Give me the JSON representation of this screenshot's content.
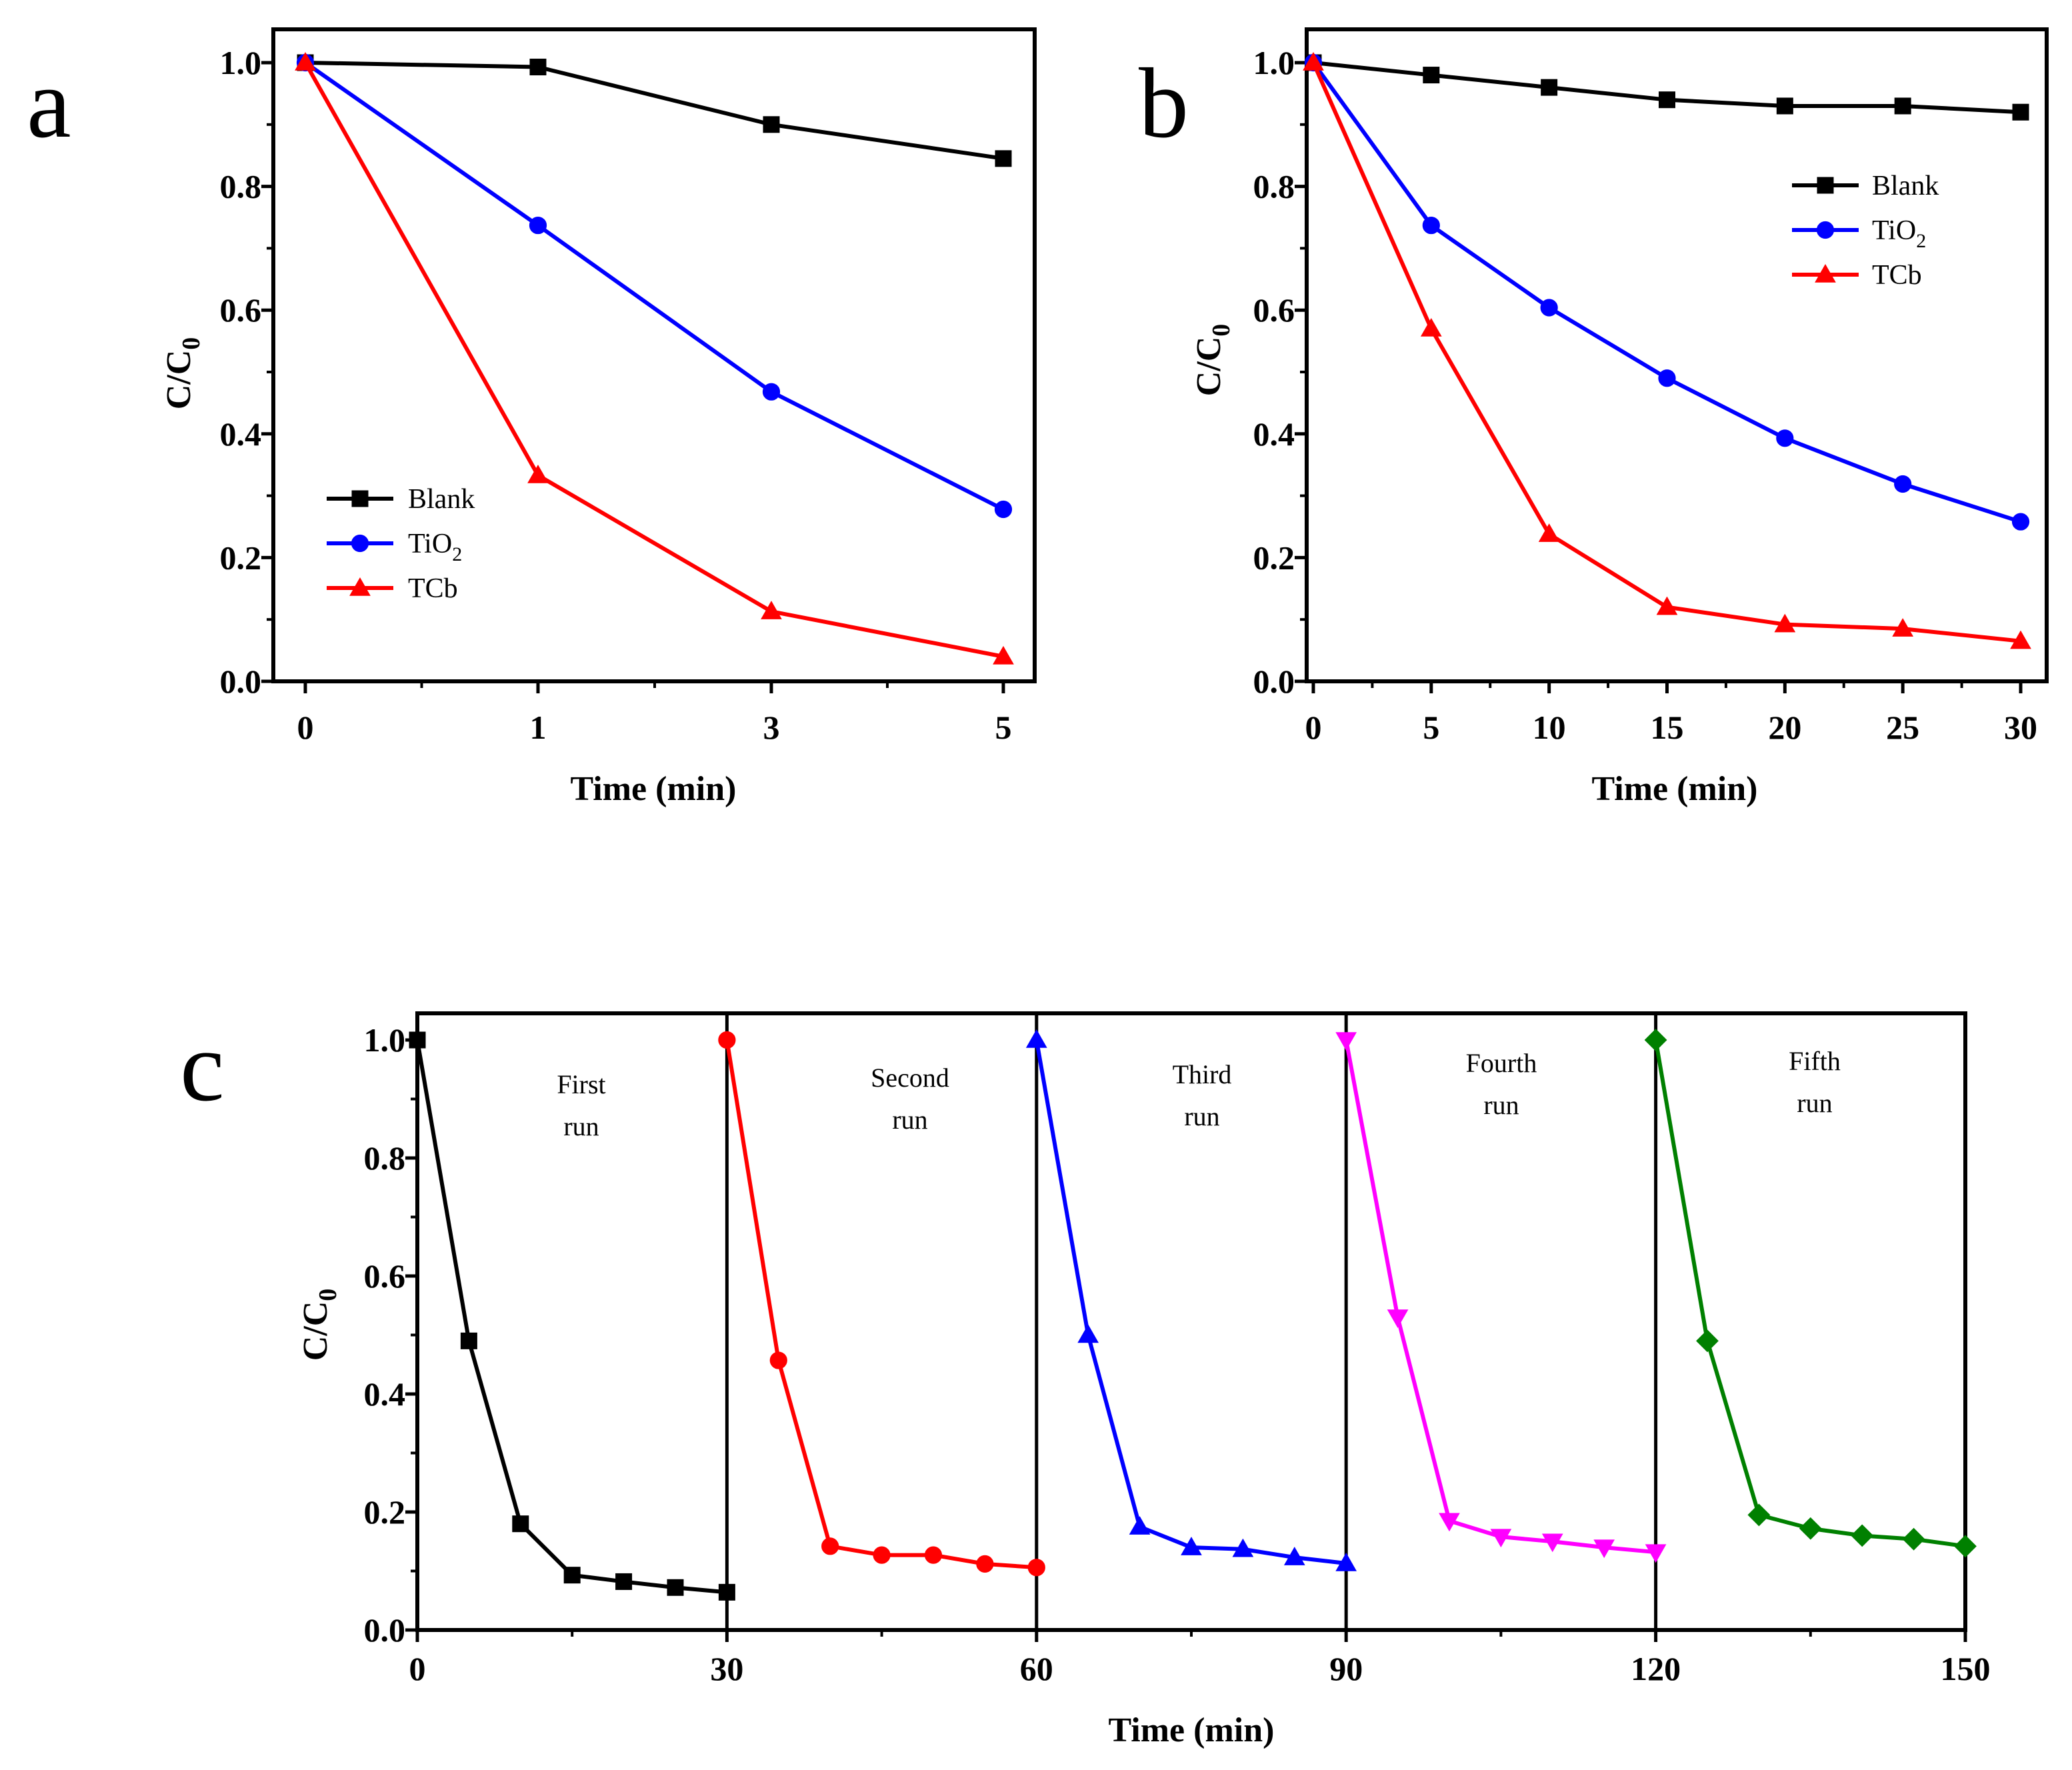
{
  "chart_data": [
    {
      "type": "line",
      "panel_label": "a",
      "xlabel": "Time (min)",
      "ylabel": "C/C",
      "ylabel_sub": "0",
      "x_categories": [
        "0",
        "1",
        "3",
        "5"
      ],
      "y_ticks": [
        "0.0",
        "0.2",
        "0.4",
        "0.6",
        "0.8",
        "1.0"
      ],
      "ylim": [
        0,
        1.0
      ],
      "legend_position": "bottom-left",
      "series": [
        {
          "name": "Blank",
          "name_sub": "",
          "marker": "square",
          "color": "#000000",
          "values": [
            1.0,
            0.993,
            0.9,
            0.845
          ]
        },
        {
          "name": "TiO",
          "name_sub": "2",
          "marker": "circle",
          "color": "#0000ff",
          "values": [
            1.0,
            0.737,
            0.468,
            0.278
          ]
        },
        {
          "name": "TCb",
          "name_sub": "",
          "marker": "triangle",
          "color": "#ff0000",
          "values": [
            1.0,
            0.333,
            0.113,
            0.04
          ]
        }
      ]
    },
    {
      "type": "line",
      "panel_label": "b",
      "xlabel": "Time (min)",
      "ylabel": "C/C",
      "ylabel_sub": "0",
      "x": [
        0,
        5,
        10,
        15,
        20,
        25,
        30
      ],
      "x_ticks": [
        "0",
        "5",
        "10",
        "15",
        "20",
        "25",
        "30"
      ],
      "y_ticks": [
        "0.0",
        "0.2",
        "0.4",
        "0.6",
        "0.8",
        "1.0"
      ],
      "xlim": [
        0,
        30
      ],
      "ylim": [
        0,
        1.0
      ],
      "legend_position": "top-right",
      "series": [
        {
          "name": "Blank",
          "name_sub": "",
          "marker": "square",
          "color": "#000000",
          "values": [
            1.0,
            0.98,
            0.96,
            0.94,
            0.93,
            0.93,
            0.92
          ]
        },
        {
          "name": "TiO",
          "name_sub": "2",
          "marker": "circle",
          "color": "#0000ff",
          "values": [
            1.0,
            0.737,
            0.604,
            0.49,
            0.393,
            0.319,
            0.258
          ]
        },
        {
          "name": "TCb",
          "name_sub": "",
          "marker": "triangle",
          "color": "#ff0000",
          "values": [
            1.0,
            0.57,
            0.238,
            0.12,
            0.092,
            0.085,
            0.065
          ]
        }
      ]
    },
    {
      "type": "line",
      "panel_label": "c",
      "xlabel": "Time (min)",
      "ylabel": "C/C",
      "ylabel_sub": "0",
      "x_ticks": [
        "0",
        "30",
        "60",
        "90",
        "120",
        "150"
      ],
      "y_ticks": [
        "0.0",
        "0.2",
        "0.4",
        "0.6",
        "0.8",
        "1.0"
      ],
      "xlim": [
        0,
        150
      ],
      "ylim": [
        0,
        1.05
      ],
      "dividers": [
        30,
        60,
        90,
        120
      ],
      "series": [
        {
          "name": "First run",
          "label_lines": [
            "First",
            "run"
          ],
          "marker": "square",
          "color": "#000000",
          "x": [
            0,
            5,
            10,
            15,
            20,
            25,
            30
          ],
          "values": [
            1.0,
            0.49,
            0.18,
            0.093,
            0.082,
            0.072,
            0.064
          ]
        },
        {
          "name": "Second run",
          "label_lines": [
            "Second",
            "run"
          ],
          "marker": "circle",
          "color": "#ff0000",
          "x": [
            30,
            35,
            40,
            45,
            50,
            55,
            60
          ],
          "values": [
            1.0,
            0.457,
            0.142,
            0.127,
            0.127,
            0.112,
            0.106
          ]
        },
        {
          "name": "Third run",
          "label_lines": [
            "Third",
            "run"
          ],
          "marker": "triangle",
          "color": "#0000ff",
          "x": [
            60,
            65,
            70,
            75,
            80,
            85,
            90
          ],
          "values": [
            1.0,
            0.5,
            0.175,
            0.14,
            0.137,
            0.123,
            0.113
          ]
        },
        {
          "name": "Fourth run",
          "label_lines": [
            "Fourth",
            "run"
          ],
          "marker": "triangle-down",
          "color": "#ff00ff",
          "x": [
            90,
            95,
            100,
            105,
            110,
            115,
            120
          ],
          "values": [
            1.0,
            0.53,
            0.185,
            0.158,
            0.15,
            0.14,
            0.132
          ]
        },
        {
          "name": "Fifth run",
          "label_lines": [
            "Fifth",
            "run"
          ],
          "marker": "diamond",
          "color": "#008000",
          "x": [
            120,
            125,
            130,
            135,
            140,
            145,
            150
          ],
          "values": [
            1.0,
            0.49,
            0.195,
            0.172,
            0.16,
            0.154,
            0.142
          ]
        }
      ]
    }
  ]
}
